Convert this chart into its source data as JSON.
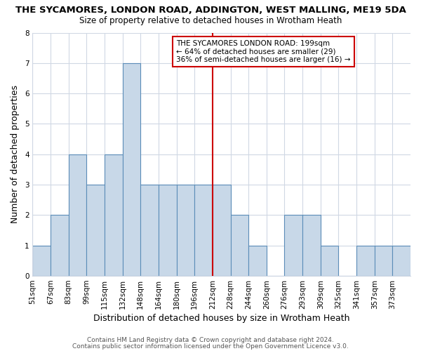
{
  "title": "THE SYCAMORES, LONDON ROAD, ADDINGTON, WEST MALLING, ME19 5DA",
  "subtitle": "Size of property relative to detached houses in Wrotham Heath",
  "xlabel": "Distribution of detached houses by size in Wrotham Heath",
  "ylabel": "Number of detached properties",
  "footer_line1": "Contains HM Land Registry data © Crown copyright and database right 2024.",
  "footer_line2": "Contains public sector information licensed under the Open Government Licence v3.0.",
  "bin_labels": [
    "51sqm",
    "67sqm",
    "83sqm",
    "99sqm",
    "115sqm",
    "132sqm",
    "148sqm",
    "164sqm",
    "180sqm",
    "196sqm",
    "212sqm",
    "228sqm",
    "244sqm",
    "260sqm",
    "276sqm",
    "293sqm",
    "309sqm",
    "325sqm",
    "341sqm",
    "357sqm",
    "373sqm"
  ],
  "bar_values": [
    1,
    2,
    4,
    3,
    4,
    7,
    3,
    3,
    3,
    3,
    3,
    2,
    1,
    0,
    2,
    2,
    1,
    0,
    1,
    1,
    1
  ],
  "bar_color": "#c8d8e8",
  "bar_edge_color": "#5b8db8",
  "subject_line_color": "#cc0000",
  "subject_bin_index": 9,
  "ylim": [
    0,
    8
  ],
  "yticks": [
    0,
    1,
    2,
    3,
    4,
    5,
    6,
    7,
    8
  ],
  "annotation_text": "THE SYCAMORES LONDON ROAD: 199sqm\n← 64% of detached houses are smaller (29)\n36% of semi-detached houses are larger (16) →",
  "bg_color": "#ffffff",
  "grid_color": "#d0d8e4",
  "title_fontsize": 9.5,
  "subtitle_fontsize": 8.5,
  "tick_fontsize": 7.5,
  "axis_label_fontsize": 9,
  "footer_fontsize": 6.5
}
